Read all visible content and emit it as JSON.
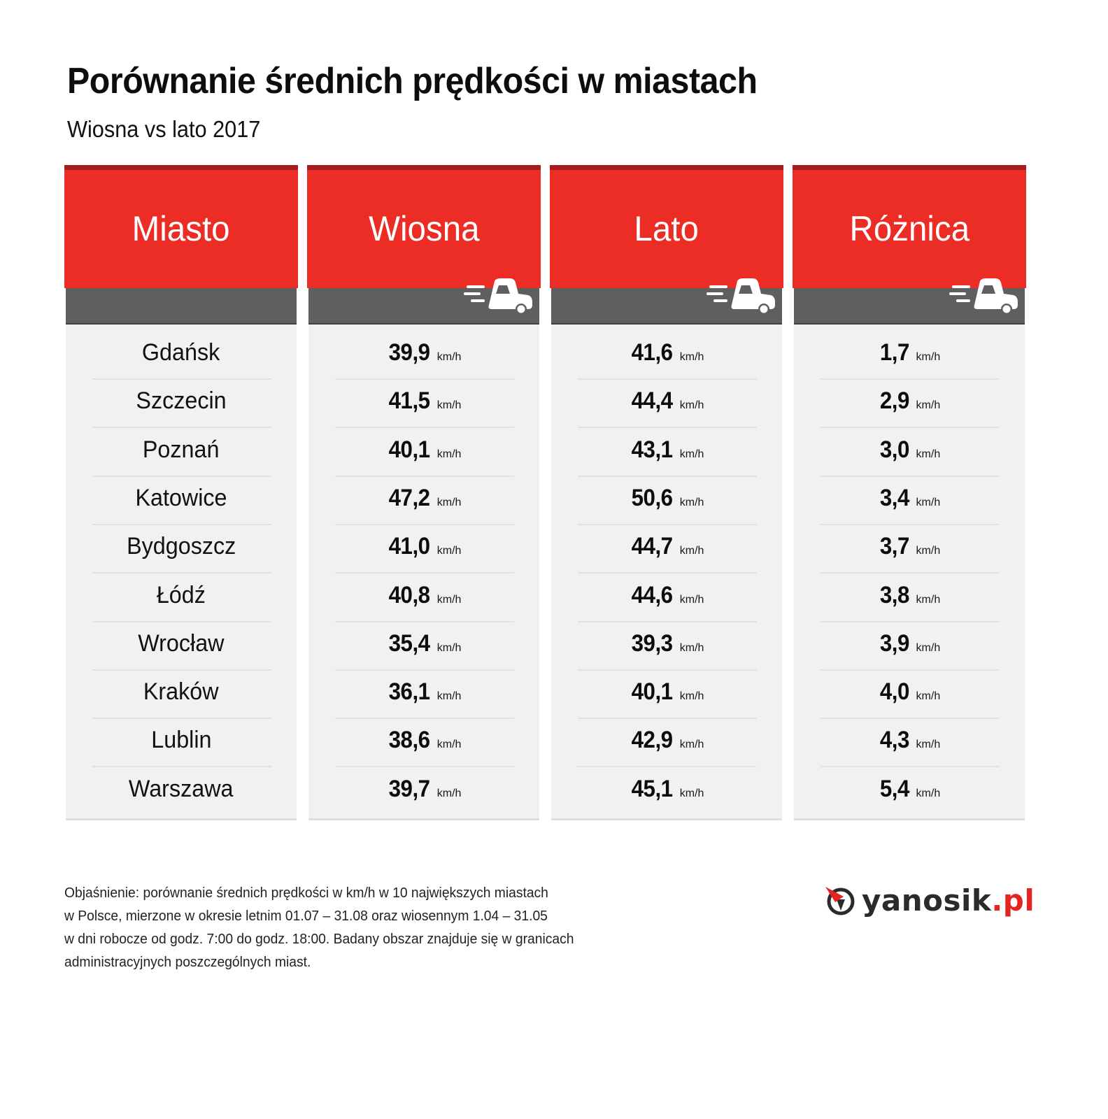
{
  "header": {
    "title": "Porównanie średnich prędkości w miastach",
    "subtitle": "Wiosna vs lato 2017"
  },
  "colors": {
    "header_red": "#ec2d26",
    "header_top_stripe": "#a41b20",
    "band_gray": "#5f5f5f",
    "body_bg": "#f1f1f1",
    "logo_red": "#e3241f"
  },
  "table": {
    "columns": [
      {
        "label": "Miasto",
        "icon": null
      },
      {
        "label": "Wiosna",
        "icon": "speeding-truck-icon"
      },
      {
        "label": "Lato",
        "icon": "speeding-truck-icon"
      },
      {
        "label": "Różnica",
        "icon": "speeding-truck-icon"
      }
    ],
    "unit": "km/h",
    "rows": [
      {
        "city": "Gdańsk",
        "spring": "39,9",
        "summer": "41,6",
        "diff": "1,7"
      },
      {
        "city": "Szczecin",
        "spring": "41,5",
        "summer": "44,4",
        "diff": "2,9"
      },
      {
        "city": "Poznań",
        "spring": "40,1",
        "summer": "43,1",
        "diff": "3,0"
      },
      {
        "city": "Katowice",
        "spring": "47,2",
        "summer": "50,6",
        "diff": "3,4"
      },
      {
        "city": "Bydgoszcz",
        "spring": "41,0",
        "summer": "44,7",
        "diff": "3,7"
      },
      {
        "city": "Łódź",
        "spring": "40,8",
        "summer": "44,6",
        "diff": "3,8"
      },
      {
        "city": "Wrocław",
        "spring": "35,4",
        "summer": "39,3",
        "diff": "3,9"
      },
      {
        "city": "Kraków",
        "spring": "36,1",
        "summer": "40,1",
        "diff": "4,0"
      },
      {
        "city": "Lublin",
        "spring": "38,6",
        "summer": "42,9",
        "diff": "4,3"
      },
      {
        "city": "Warszawa",
        "spring": "39,7",
        "summer": "45,1",
        "diff": "5,4"
      }
    ]
  },
  "footnote": {
    "lines": [
      "Objaśnienie: porównanie średnich prędkości w km/h w 10 największych miastach",
      "w Polsce, mierzone w okresie letnim 01.07 – 31.08 oraz wiosennym 1.04 – 31.05",
      "w dni robocze od godz. 7:00 do godz. 18:00. Badany obszar znajduje się w granicach",
      "administracyjnych poszczególnych miast."
    ]
  },
  "logo": {
    "name": "yanosik",
    "tld": ".pl",
    "icon": "yanosik-compass-icon"
  },
  "chart_data": {
    "type": "table",
    "title": "Porównanie średnich prędkości w miastach",
    "subtitle": "Wiosna vs lato 2017",
    "columns": [
      "Miasto",
      "Wiosna",
      "Lato",
      "Różnica"
    ],
    "unit": "km/h",
    "categories": [
      "Gdańsk",
      "Szczecin",
      "Poznań",
      "Katowice",
      "Bydgoszcz",
      "Łódź",
      "Wrocław",
      "Kraków",
      "Lublin",
      "Warszawa"
    ],
    "series": [
      {
        "name": "Wiosna",
        "values": [
          39.9,
          41.5,
          40.1,
          47.2,
          41.0,
          40.8,
          35.4,
          36.1,
          38.6,
          39.7
        ]
      },
      {
        "name": "Lato",
        "values": [
          41.6,
          44.4,
          43.1,
          50.6,
          44.7,
          44.6,
          39.3,
          40.1,
          42.9,
          45.1
        ]
      },
      {
        "name": "Różnica",
        "values": [
          1.7,
          2.9,
          3.0,
          3.4,
          3.7,
          3.8,
          3.9,
          4.0,
          4.3,
          5.4
        ]
      }
    ]
  }
}
